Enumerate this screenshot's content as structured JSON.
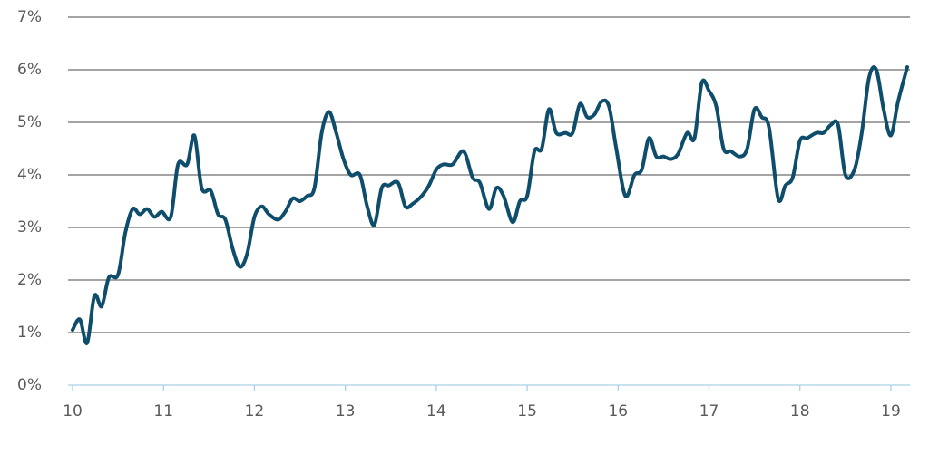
{
  "chart_data": {
    "type": "line",
    "x": [
      10.0,
      10.08,
      10.16,
      10.24,
      10.32,
      10.4,
      10.5,
      10.58,
      10.66,
      10.74,
      10.82,
      10.9,
      10.98,
      11.08,
      11.16,
      11.26,
      11.34,
      11.42,
      11.52,
      11.6,
      11.68,
      11.76,
      11.84,
      11.92,
      12.0,
      12.08,
      12.16,
      12.26,
      12.34,
      12.42,
      12.5,
      12.58,
      12.66,
      12.74,
      12.82,
      12.9,
      12.98,
      13.06,
      13.16,
      13.24,
      13.32,
      13.4,
      13.48,
      13.58,
      13.66,
      13.74,
      13.84,
      13.92,
      14.0,
      14.08,
      14.18,
      14.3,
      14.4,
      14.48,
      14.58,
      14.66,
      14.74,
      14.84,
      14.92,
      15.0,
      15.08,
      15.16,
      15.24,
      15.32,
      15.42,
      15.5,
      15.58,
      15.66,
      15.74,
      15.82,
      15.9,
      15.98,
      16.08,
      16.18,
      16.26,
      16.34,
      16.42,
      16.5,
      16.58,
      16.66,
      16.76,
      16.84,
      16.92,
      17.0,
      17.08,
      17.16,
      17.24,
      17.34,
      17.42,
      17.5,
      17.58,
      17.66,
      17.76,
      17.84,
      17.92,
      18.0,
      18.08,
      18.18,
      18.26,
      18.34,
      18.42,
      18.5,
      18.6,
      18.68,
      18.76,
      18.84,
      18.92,
      19.0,
      19.08,
      19.18
    ],
    "values": [
      1.05,
      1.25,
      0.8,
      1.7,
      1.5,
      2.05,
      2.1,
      2.9,
      3.35,
      3.25,
      3.35,
      3.2,
      3.3,
      3.2,
      4.2,
      4.2,
      4.75,
      3.75,
      3.7,
      3.25,
      3.15,
      2.6,
      2.25,
      2.5,
      3.2,
      3.4,
      3.25,
      3.15,
      3.3,
      3.55,
      3.5,
      3.6,
      3.75,
      4.8,
      5.2,
      4.8,
      4.3,
      4.0,
      4.0,
      3.4,
      3.05,
      3.75,
      3.8,
      3.85,
      3.4,
      3.45,
      3.6,
      3.8,
      4.1,
      4.2,
      4.2,
      4.45,
      3.95,
      3.85,
      3.35,
      3.75,
      3.6,
      3.1,
      3.5,
      3.6,
      4.45,
      4.5,
      5.25,
      4.8,
      4.8,
      4.8,
      5.35,
      5.1,
      5.15,
      5.4,
      5.3,
      4.5,
      3.6,
      4.0,
      4.1,
      4.7,
      4.35,
      4.35,
      4.3,
      4.4,
      4.8,
      4.7,
      5.75,
      5.6,
      5.3,
      4.5,
      4.45,
      4.35,
      4.5,
      5.25,
      5.1,
      4.9,
      3.55,
      3.8,
      3.95,
      4.65,
      4.7,
      4.8,
      4.8,
      4.95,
      4.95,
      4.0,
      4.1,
      4.8,
      5.85,
      6.0,
      5.25,
      4.75,
      5.4,
      6.05
    ],
    "color": "#0e4d6b",
    "xlim": [
      9.95,
      19.21
    ],
    "xticks": [
      10,
      11,
      12,
      13,
      14,
      15,
      16,
      17,
      18,
      19
    ],
    "ylim": [
      0,
      7
    ],
    "yticks": [
      {
        "value": 0,
        "label": "0%"
      },
      {
        "value": 1,
        "label": "1%"
      },
      {
        "value": 2,
        "label": "2%"
      },
      {
        "value": 3,
        "label": "3%"
      },
      {
        "value": 4,
        "label": "4%"
      },
      {
        "value": 5,
        "label": "5%"
      },
      {
        "value": 6,
        "label": "6%"
      },
      {
        "value": 7,
        "label": "7%"
      }
    ],
    "grid": true,
    "grid_color": "#6e6e6e",
    "baseline_color": "#a9d0e6"
  }
}
